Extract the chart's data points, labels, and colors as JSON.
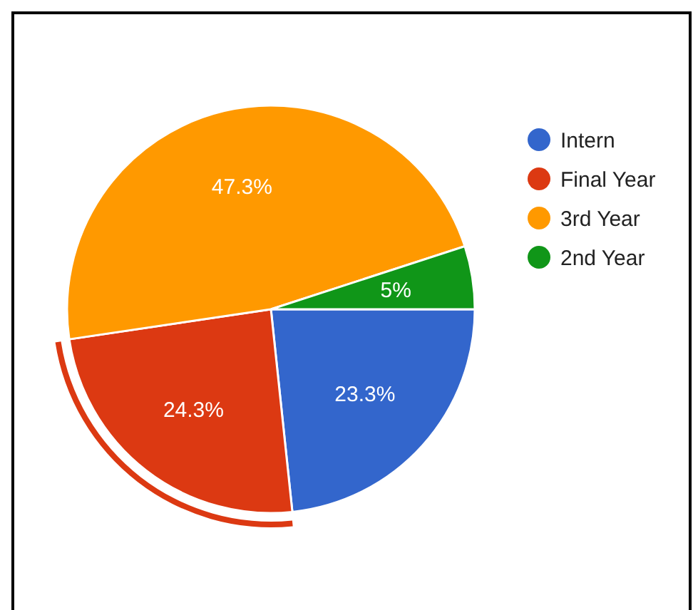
{
  "chart_data": {
    "type": "pie",
    "categories": [
      "Intern",
      "Final Year",
      "3rd Year",
      "2nd Year"
    ],
    "values": [
      23.3,
      24.3,
      47.3,
      5
    ],
    "colors": [
      "#3366cc",
      "#dc3912",
      "#ff9900",
      "#109618"
    ],
    "value_labels": [
      "23.3%",
      "24.3%",
      "47.3%",
      "5%"
    ],
    "legend": "right"
  }
}
